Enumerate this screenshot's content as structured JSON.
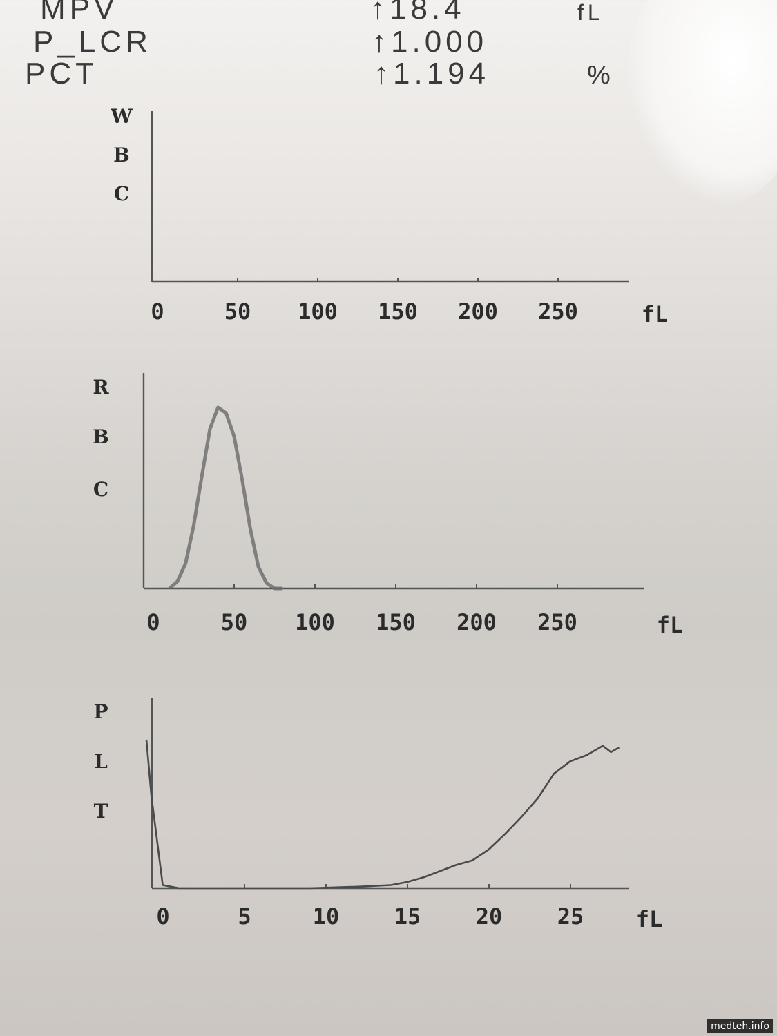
{
  "results": [
    {
      "name": "MPV",
      "value": "↑18.4",
      "unit": "fL"
    },
    {
      "name": "P_LCR",
      "value": "↑1.000",
      "unit": ""
    },
    {
      "name": "PCT",
      "value": "↑1.194",
      "unit": "%"
    }
  ],
  "watermark": "medteh.info",
  "chart_data": [
    {
      "type": "line",
      "ylabel_letters": [
        "W",
        "B",
        "C"
      ],
      "xlabel": "fL",
      "x_ticks": [
        "0",
        "50",
        "100",
        "150",
        "200",
        "250"
      ],
      "xlim": [
        0,
        290
      ],
      "series": [
        {
          "x": [],
          "y": []
        }
      ]
    },
    {
      "type": "line",
      "ylabel_letters": [
        "R",
        "B",
        "C"
      ],
      "xlabel": "fL",
      "x_ticks": [
        "0",
        "50",
        "100",
        "150",
        "200",
        "250"
      ],
      "xlim": [
        0,
        290
      ],
      "ylim": [
        0,
        1
      ],
      "series": [
        {
          "x": [
            10,
            15,
            20,
            25,
            30,
            35,
            40,
            45,
            50,
            55,
            60,
            65,
            70,
            75,
            80
          ],
          "y": [
            0.0,
            0.04,
            0.14,
            0.35,
            0.62,
            0.88,
            1.0,
            0.97,
            0.84,
            0.6,
            0.33,
            0.12,
            0.03,
            0.0,
            0.0
          ]
        }
      ]
    },
    {
      "type": "line",
      "ylabel_letters": [
        "P",
        "L",
        "T"
      ],
      "xlabel": "fL",
      "x_ticks": [
        "0",
        "5",
        "10",
        "15",
        "20",
        "25"
      ],
      "xlim": [
        0,
        29
      ],
      "ylim": [
        0,
        1
      ],
      "series": [
        {
          "x": [
            0,
            0.3,
            1,
            2,
            5,
            10,
            13,
            15,
            16,
            17,
            18,
            19,
            20,
            21,
            22,
            23,
            24,
            25,
            26,
            27,
            27.5,
            28,
            28.5,
            29
          ],
          "y": [
            0.96,
            0.6,
            0.02,
            0.0,
            0.0,
            0.0,
            0.01,
            0.02,
            0.04,
            0.07,
            0.11,
            0.15,
            0.18,
            0.25,
            0.35,
            0.46,
            0.58,
            0.74,
            0.82,
            0.86,
            0.89,
            0.92,
            0.88,
            0.91
          ]
        }
      ]
    }
  ]
}
